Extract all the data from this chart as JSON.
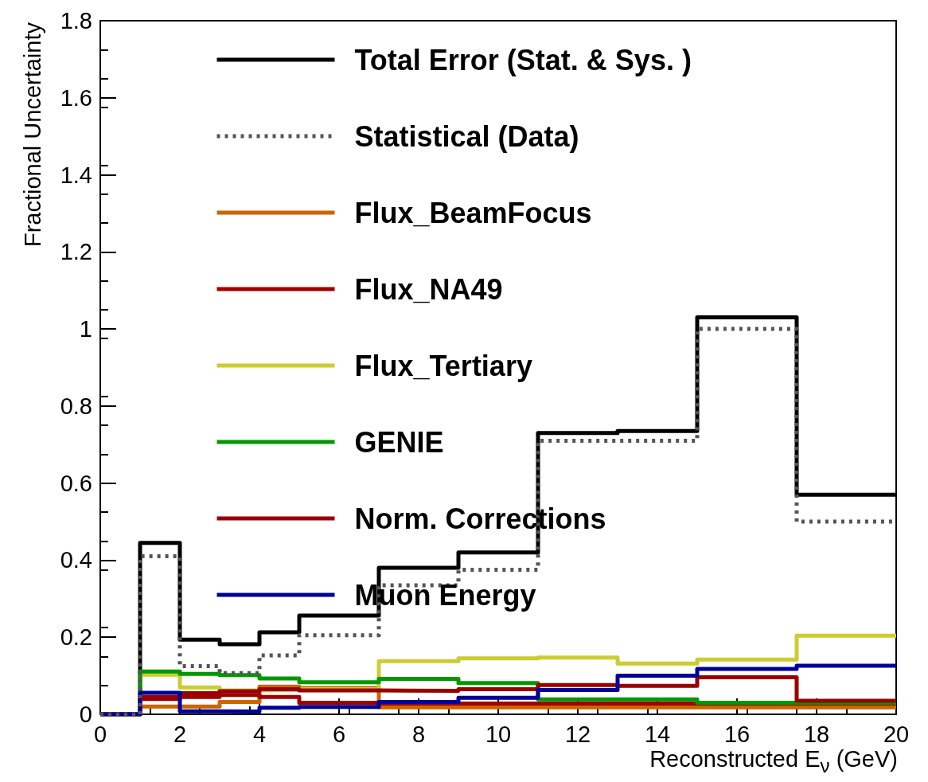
{
  "chart_data": {
    "type": "histogram",
    "xlabel": "Reconstructed E$_{ν}$ (GeV)",
    "ylabel": "Fractional Uncertainty",
    "bins": [
      0,
      1,
      2,
      3,
      4,
      5,
      7,
      9,
      11,
      13,
      15,
      17.5,
      20
    ],
    "series": [
      {
        "name": "Total Error (Stat. & Sys. )",
        "color": "#000000",
        "line_style": "solid",
        "values": [
          0,
          0.445,
          0.194,
          0.182,
          0.213,
          0.256,
          0.38,
          0.42,
          0.73,
          0.735,
          1.03,
          0.57
        ]
      },
      {
        "name": "Statistical (Data)",
        "color": "#555555",
        "line_style": "dotted",
        "values": [
          0,
          0.41,
          0.125,
          0.107,
          0.153,
          0.205,
          0.335,
          0.375,
          0.71,
          0.71,
          1.0,
          0.5
        ]
      },
      {
        "name": "Flux_BeamFocus",
        "color": "#cc6600",
        "line_style": "solid",
        "values": [
          0,
          0.02,
          0.02,
          0.032,
          0.072,
          0.068,
          0.018,
          0.018,
          0.018,
          0.018,
          0.018,
          0.018
        ]
      },
      {
        "name": "Flux_NA49",
        "color": "#a00000",
        "line_style": "solid",
        "values": [
          0,
          0.04,
          0.045,
          0.05,
          0.045,
          0.03,
          0.028,
          0.028,
          0.028,
          0.028,
          0.028,
          0.028
        ]
      },
      {
        "name": "Flux_Tertiary",
        "color": "#cccc33",
        "line_style": "solid",
        "values": [
          0,
          0.103,
          0.07,
          0.062,
          0.063,
          0.065,
          0.138,
          0.145,
          0.147,
          0.132,
          0.142,
          0.204
        ]
      },
      {
        "name": "GENIE",
        "color": "#009900",
        "line_style": "solid",
        "values": [
          0,
          0.111,
          0.105,
          0.102,
          0.093,
          0.083,
          0.092,
          0.081,
          0.039,
          0.039,
          0.03,
          0.03
        ]
      },
      {
        "name": "Norm. Corrections",
        "color": "#990000",
        "line_style": "solid",
        "values": [
          0,
          0.045,
          0.055,
          0.06,
          0.065,
          0.062,
          0.061,
          0.065,
          0.076,
          0.074,
          0.096,
          0.035
        ]
      },
      {
        "name": "Muon Energy",
        "color": "#000099",
        "line_style": "solid",
        "values": [
          0,
          0.056,
          0.008,
          0.007,
          0.017,
          0.019,
          0.032,
          0.043,
          0.063,
          0.1,
          0.118,
          0.126
        ]
      }
    ],
    "xlim": [
      0,
      20
    ],
    "xticks": [
      0,
      2,
      4,
      6,
      8,
      10,
      12,
      14,
      16,
      18,
      20
    ],
    "ylim": [
      0,
      1.8
    ],
    "yticks": [
      0,
      0.2,
      0.4,
      0.6,
      0.8,
      1,
      1.2,
      1.4,
      1.6,
      1.8
    ],
    "grid": false,
    "legend": "top",
    "marker": "none"
  }
}
